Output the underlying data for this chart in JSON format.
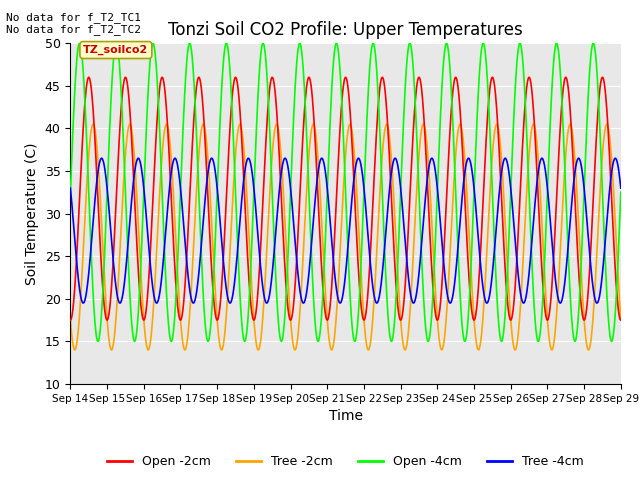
{
  "title": "Tonzi Soil CO2 Profile: Upper Temperatures",
  "xlabel": "Time",
  "ylabel": "Soil Temperature (C)",
  "ylim": [
    10,
    50
  ],
  "xtick_labels": [
    "Sep 14",
    "Sep 15",
    "Sep 16",
    "Sep 17",
    "Sep 18",
    "Sep 19",
    "Sep 20",
    "Sep 21",
    "Sep 22",
    "Sep 23",
    "Sep 24",
    "Sep 25",
    "Sep 26",
    "Sep 27",
    "Sep 28",
    "Sep 29"
  ],
  "ytick_values": [
    10,
    15,
    20,
    25,
    30,
    35,
    40,
    45,
    50
  ],
  "bg_color": "#e8e8e8",
  "colors": {
    "open_2cm": "#ff0000",
    "tree_2cm": "#ffa500",
    "open_4cm": "#00ff00",
    "tree_4cm": "#0000ff"
  },
  "legend_labels": [
    "Open -2cm",
    "Tree -2cm",
    "Open -4cm",
    "Tree -4cm"
  ],
  "annotation_text": "No data for f_T2_TC1\nNo data for f_T2_TC2",
  "box_label": "TZ_soilco2",
  "daily_params": {
    "open_2cm": {
      "min": 17.5,
      "max": 46.0,
      "phase": 0.0
    },
    "tree_2cm": {
      "min": 14.0,
      "max": 40.5,
      "phase": 0.12
    },
    "open_4cm": {
      "min": 15.0,
      "max": 50.0,
      "phase": -0.25
    },
    "tree_4cm": {
      "min": 19.5,
      "max": 36.5,
      "phase": 0.35
    }
  }
}
